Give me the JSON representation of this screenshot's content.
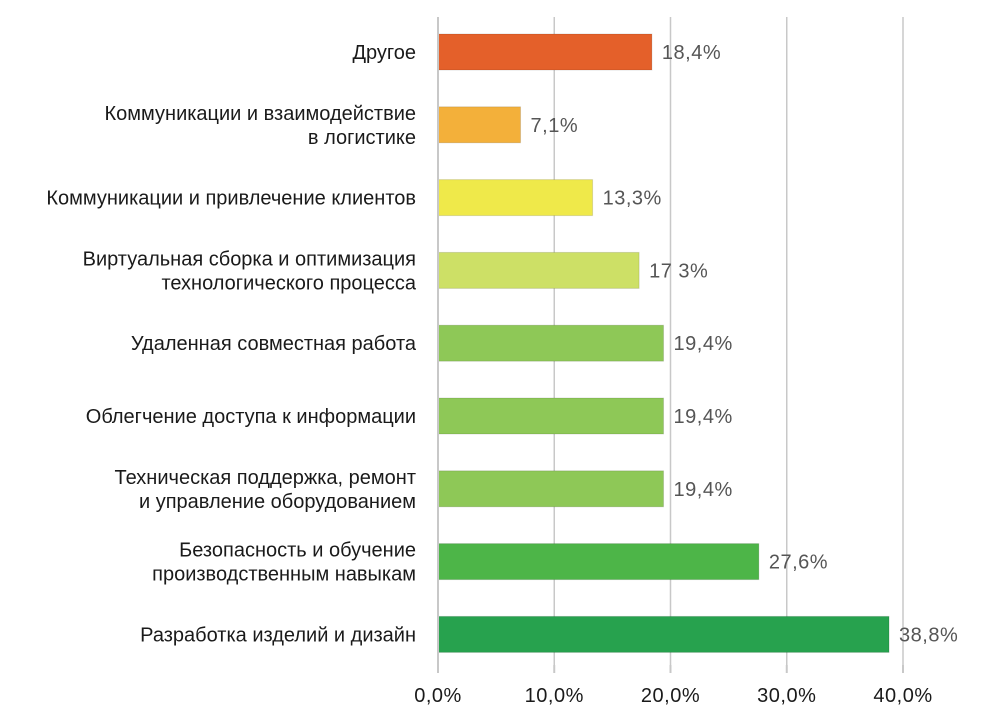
{
  "chart_data": {
    "type": "bar",
    "orientation": "horizontal",
    "title": "",
    "xlabel": "",
    "ylabel": "",
    "xlim": [
      0,
      40
    ],
    "x_ticks": [
      0,
      10,
      20,
      30,
      40
    ],
    "x_tick_labels": [
      "0,0%",
      "10,0%",
      "20,0%",
      "30,0%",
      "40,0%"
    ],
    "grid": "vertical",
    "legend": "none",
    "categories": [
      [
        "Другое"
      ],
      [
        "Коммуникации и взаимодействие",
        "в логистике"
      ],
      [
        "Коммуникации и привлечение клиентов"
      ],
      [
        "Виртуальная сборка и оптимизация",
        "технологического процесса"
      ],
      [
        "Удаленная совместная работа"
      ],
      [
        "Облегчение доступа к информации"
      ],
      [
        "Техническая поддержка, ремонт",
        "и управление оборудованием"
      ],
      [
        "Безопасность и обучение",
        "производственным навыкам"
      ],
      [
        "Разработка  изделий и дизайн"
      ]
    ],
    "values": [
      18.4,
      7.1,
      13.3,
      17.3,
      19.4,
      19.4,
      19.4,
      27.6,
      38.8
    ],
    "value_labels": [
      "18,4%",
      "7,1%",
      "13,3%",
      "17 3%",
      "19,4%",
      "19,4%",
      "19,4%",
      "27,6%",
      "38,8%"
    ],
    "colors": [
      "#e4602a",
      "#f3b03a",
      "#efe94a",
      "#cde066",
      "#8ec857",
      "#8ec857",
      "#8ec857",
      "#4db548",
      "#27a24e"
    ]
  }
}
